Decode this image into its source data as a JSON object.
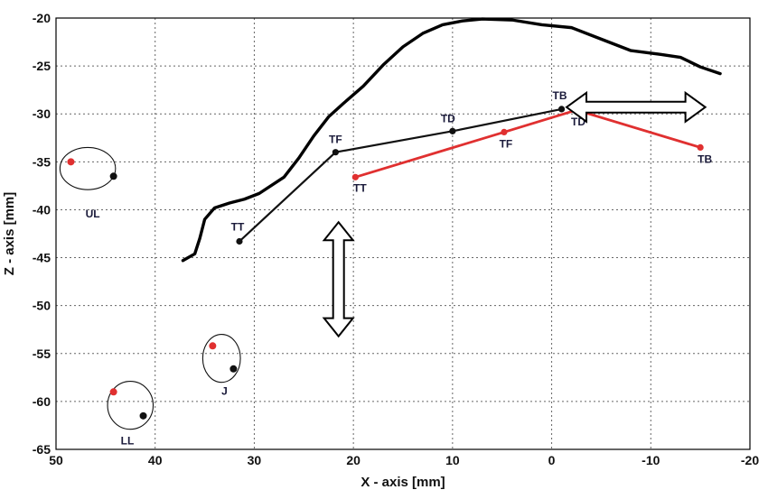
{
  "chart_data": {
    "type": "line",
    "title": "",
    "xlabel": "X - axis [mm]",
    "ylabel": "Z - axis [mm]",
    "xlim": [
      50,
      -20
    ],
    "ylim": [
      -65,
      -20
    ],
    "x_reversed": true,
    "xticks": [
      50,
      40,
      30,
      20,
      10,
      0,
      -10,
      -20
    ],
    "xtick_labels": [
      "50",
      "40",
      "30",
      "20",
      "10",
      "0",
      "-10",
      "-20"
    ],
    "yticks": [
      -20,
      -25,
      -30,
      -35,
      -40,
      -45,
      -50,
      -55,
      -60,
      -65
    ],
    "ytick_labels": [
      "-20",
      "-25",
      "-30",
      "-35",
      "-40",
      "-45",
      "-50",
      "-55",
      "-60",
      "-65"
    ],
    "grid": true,
    "grid_style": "dotted",
    "series": [
      {
        "role": "palate-contour",
        "color": "#000000",
        "points": [
          [
            37.2,
            -45.3
          ],
          [
            36.0,
            -44.6
          ],
          [
            35.5,
            -43.0
          ],
          [
            35.0,
            -41.0
          ],
          [
            34.0,
            -39.8
          ],
          [
            32.5,
            -39.3
          ],
          [
            31.0,
            -38.9
          ],
          [
            29.5,
            -38.3
          ],
          [
            27.0,
            -36.6
          ],
          [
            25.5,
            -34.6
          ],
          [
            24.0,
            -32.3
          ],
          [
            22.5,
            -30.3
          ],
          [
            21.0,
            -28.9
          ],
          [
            19.0,
            -27.1
          ],
          [
            17.0,
            -24.9
          ],
          [
            15.0,
            -23.0
          ],
          [
            13.0,
            -21.6
          ],
          [
            11.0,
            -20.7
          ],
          [
            9.0,
            -20.3
          ],
          [
            7.0,
            -20.1
          ],
          [
            4.0,
            -20.2
          ],
          [
            1.0,
            -20.7
          ],
          [
            -2.0,
            -21.0
          ],
          [
            -5.0,
            -22.2
          ],
          [
            -8.0,
            -23.4
          ],
          [
            -11.0,
            -23.8
          ],
          [
            -13.0,
            -24.1
          ],
          [
            -15.0,
            -25.1
          ],
          [
            -17.0,
            -25.8
          ]
        ]
      },
      {
        "role": "tongue-black",
        "color": "#111111",
        "points": [
          {
            "x": 31.5,
            "y": -43.3,
            "label": "TT"
          },
          {
            "x": 21.8,
            "y": -34.0,
            "label": "TF"
          },
          {
            "x": 10.0,
            "y": -31.8,
            "label": "TD"
          },
          {
            "x": -1.0,
            "y": -29.5,
            "label": "TB"
          }
        ]
      },
      {
        "role": "tongue-red",
        "color": "#e03030",
        "points": [
          {
            "x": 19.8,
            "y": -36.6,
            "label": "TT"
          },
          {
            "x": 4.8,
            "y": -31.9,
            "label": "TF"
          },
          {
            "x": -2.5,
            "y": -29.6,
            "label": "TD"
          },
          {
            "x": -15.0,
            "y": -33.5,
            "label": "TB"
          }
        ]
      }
    ],
    "groups": [
      {
        "label": "UL",
        "center": [
          46.8,
          -35.7
        ],
        "radius": [
          2.8,
          2.2
        ],
        "red": [
          48.5,
          -35.0
        ],
        "black": [
          44.2,
          -36.5
        ],
        "label_at": [
          46.3,
          -40.8
        ]
      },
      {
        "label": "LL",
        "center": [
          42.5,
          -60.4
        ],
        "radius": [
          2.3,
          2.5
        ],
        "red": [
          44.2,
          -59.0
        ],
        "black": [
          41.2,
          -61.5
        ],
        "label_at": [
          42.8,
          -64.5
        ]
      },
      {
        "label": "J",
        "center": [
          33.3,
          -55.5
        ],
        "radius": [
          1.9,
          2.5
        ],
        "red": [
          34.2,
          -54.2
        ],
        "black": [
          32.1,
          -56.6
        ],
        "label_at": [
          33.0,
          -59.3
        ]
      }
    ],
    "arrows": [
      {
        "direction": "vertical",
        "from": [
          21.5,
          -41.3
        ],
        "to": [
          21.5,
          -53.2
        ]
      },
      {
        "direction": "horizontal",
        "from": [
          -1.5,
          -29.3
        ],
        "to": [
          -15.5,
          -29.3
        ]
      }
    ]
  }
}
